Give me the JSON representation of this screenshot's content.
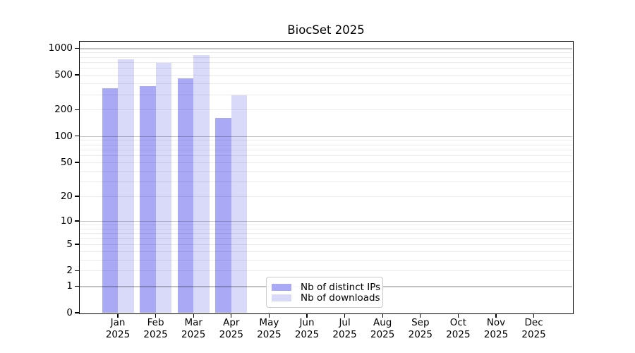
{
  "figure": {
    "title": "BiocSet 2025"
  },
  "chart_data": {
    "type": "bar",
    "title": "BiocSet 2025",
    "x_categories": [
      "Jan",
      "Feb",
      "Mar",
      "Apr",
      "May",
      "Jun",
      "Jul",
      "Aug",
      "Sep",
      "Oct",
      "Nov",
      "Dec"
    ],
    "x_year": "2025",
    "series": [
      {
        "name": "Nb of distinct IPs",
        "color": "#a9a9f6",
        "values": [
          350,
          370,
          455,
          162,
          0,
          0,
          0,
          0,
          0,
          0,
          0,
          0
        ]
      },
      {
        "name": "Nb of downloads",
        "color": "#d9d9f9",
        "values": [
          750,
          685,
          840,
          290,
          0,
          0,
          0,
          0,
          0,
          0,
          0,
          0
        ]
      }
    ],
    "y_scale": "log1p",
    "ylim": [
      0,
      1190
    ],
    "y_ticks": [
      0,
      1,
      2,
      5,
      10,
      20,
      50,
      100,
      200,
      500,
      1000
    ],
    "y_major_gridlines": [
      1,
      10,
      100,
      1000
    ],
    "y_minor_gridlines": [
      2,
      3,
      4,
      5,
      6,
      7,
      8,
      9,
      20,
      30,
      40,
      50,
      60,
      70,
      80,
      90,
      200,
      300,
      400,
      500,
      600,
      700,
      800,
      900
    ],
    "grid": true,
    "legend_position": "lower center"
  }
}
